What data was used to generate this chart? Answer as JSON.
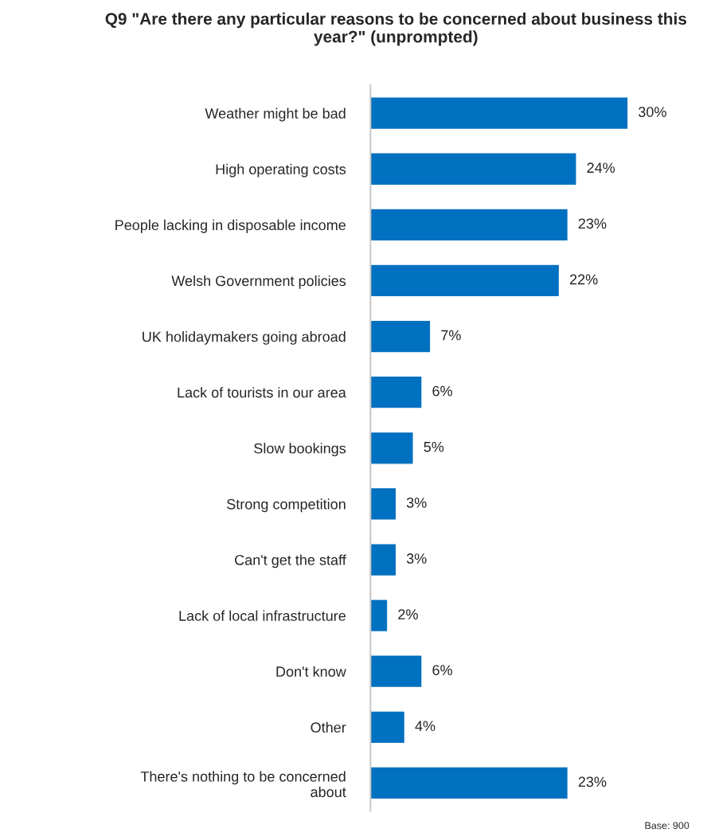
{
  "chart_data": {
    "type": "bar",
    "orientation": "horizontal",
    "title": "Q9 \"Are there any particular reasons to be concerned about business this year?\" (unprompted)",
    "categories": [
      "Weather might be bad",
      "High operating costs",
      "People lacking in disposable income",
      "Welsh Government policies",
      "UK holidaymakers going abroad",
      "Lack of tourists in our area",
      "Slow bookings",
      "Strong competition",
      "Can't get the staff",
      "Lack of local infrastructure",
      "Don't know",
      "Other",
      "There's nothing to be concerned\nabout"
    ],
    "values": [
      30,
      24,
      23,
      22,
      7,
      6,
      5,
      3,
      3,
      2,
      6,
      4,
      23
    ],
    "value_labels": [
      "30%",
      "24%",
      "23%",
      "22%",
      "7%",
      "6%",
      "5%",
      "3%",
      "3%",
      "2%",
      "6%",
      "4%",
      "23%"
    ],
    "color": "#0070c0",
    "grid": false,
    "legend": false,
    "annotations": [
      "Base: 900"
    ]
  }
}
